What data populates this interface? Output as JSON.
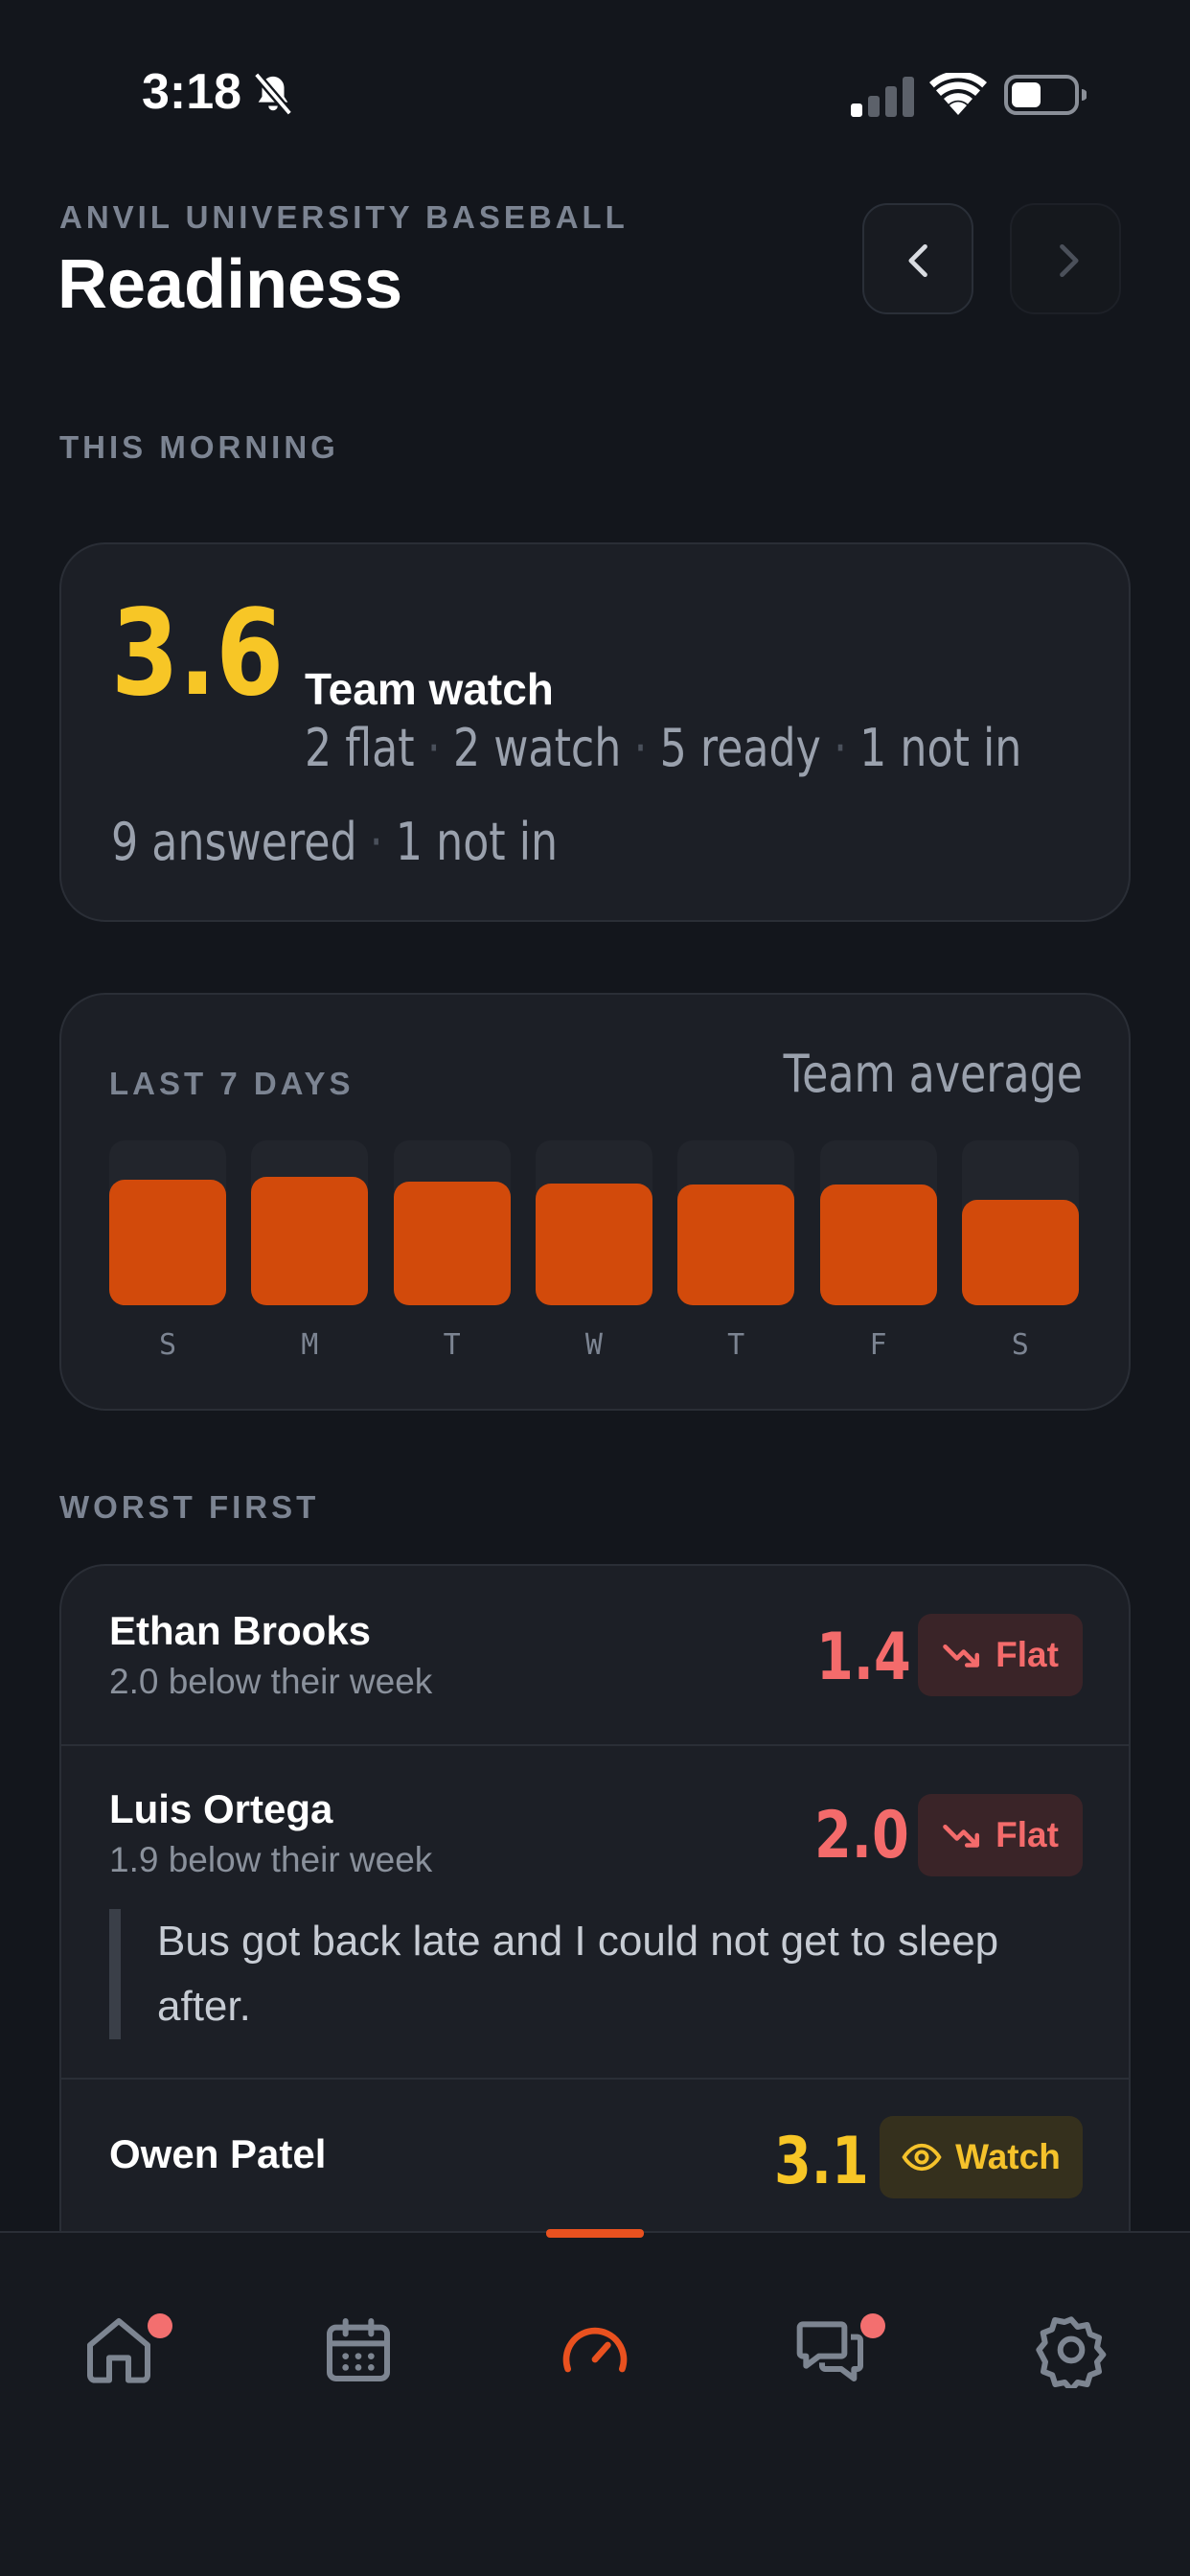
{
  "status_bar": {
    "time": "3:18"
  },
  "header": {
    "eyebrow": "ANVIL UNIVERSITY BASEBALL",
    "title": "Readiness"
  },
  "this_morning": {
    "section_label": "THIS MORNING",
    "score": "3.6",
    "status": "Team watch",
    "counts": [
      "2 flat",
      "2 watch",
      "5 ready",
      "1 not in"
    ],
    "answered": [
      "9 answered",
      "1 not in"
    ]
  },
  "chart": {
    "section_label": "LAST 7 DAYS",
    "subtitle": "Team average",
    "colors": {
      "bar": "#d24a0b",
      "track": "#22252c"
    }
  },
  "chart_data": {
    "type": "bar",
    "categories": [
      "S",
      "M",
      "T",
      "W",
      "T",
      "F",
      "S"
    ],
    "values": [
      0.76,
      0.78,
      0.75,
      0.74,
      0.73,
      0.73,
      0.64
    ],
    "ylim": [
      0,
      1
    ],
    "title": "LAST 7 DAYS",
    "legend": "Team average",
    "grid": false
  },
  "worst_first": {
    "section_label": "WORST FIRST",
    "players": [
      {
        "name": "Ethan Brooks",
        "sub": "2.0 below their week",
        "score": "1.4",
        "badge": "Flat",
        "tone": "flat"
      },
      {
        "name": "Luis Ortega",
        "sub": "1.9 below their week",
        "score": "2.0",
        "badge": "Flat",
        "tone": "flat",
        "note": "Bus got back late and I could not get to sleep after."
      },
      {
        "name": "Owen Patel",
        "sub": "",
        "score": "3.1",
        "badge": "Watch",
        "tone": "watch"
      }
    ]
  },
  "colors": {
    "flat": "#f46b6b",
    "watch": "#f5c22b",
    "accent": "#e9511f",
    "score_yellow": "#f7c626"
  },
  "tabbar": {
    "items": [
      {
        "icon": "home-icon",
        "badge": true
      },
      {
        "icon": "calendar-icon",
        "badge": false
      },
      {
        "icon": "gauge-icon",
        "badge": false,
        "active": true
      },
      {
        "icon": "chat-icon",
        "badge": true
      },
      {
        "icon": "gear-icon",
        "badge": false
      }
    ]
  }
}
